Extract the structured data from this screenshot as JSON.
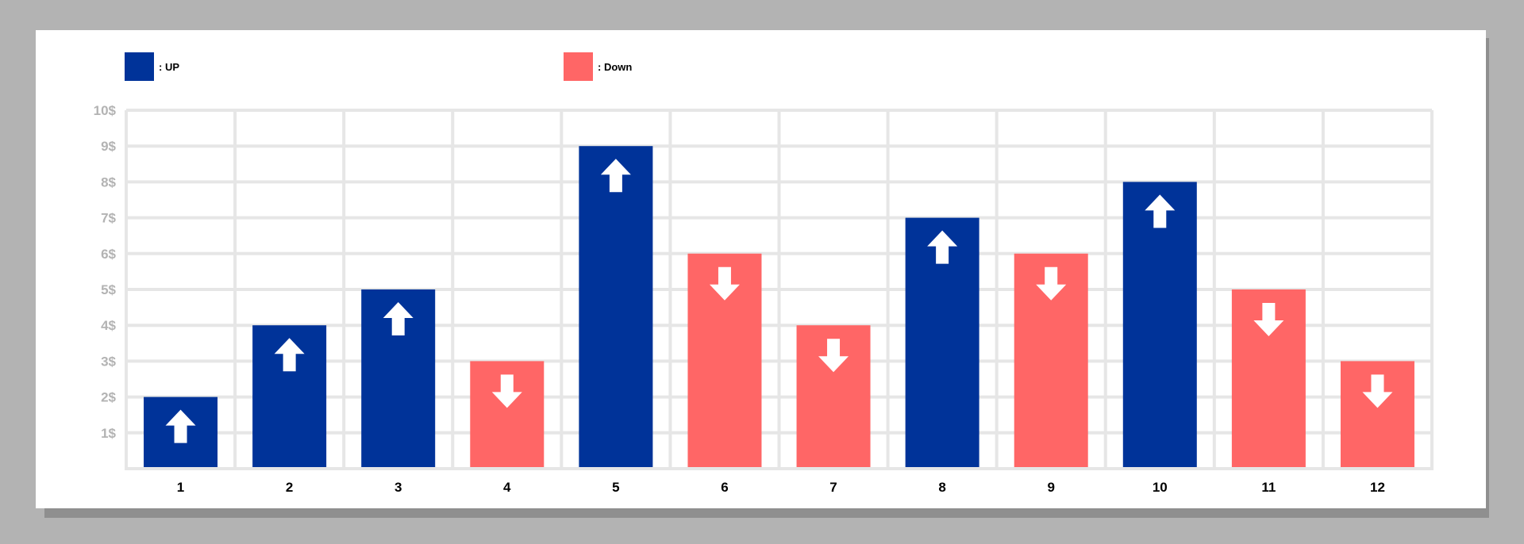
{
  "legend": {
    "up_label": ": UP",
    "down_label": ": Down"
  },
  "colors": {
    "up": "#003399",
    "down": "#ff6666",
    "grid": "#e6e6e6",
    "y_tick": "#b3b3b3",
    "x_tick": "#000000"
  },
  "chart_data": {
    "type": "bar",
    "title": "",
    "xlabel": "",
    "ylabel": "",
    "categories": [
      "1",
      "2",
      "3",
      "4",
      "5",
      "6",
      "7",
      "8",
      "9",
      "10",
      "11",
      "12"
    ],
    "values": [
      2,
      4,
      5,
      3,
      9,
      6,
      4,
      7,
      6,
      8,
      5,
      3
    ],
    "directions": [
      "up",
      "up",
      "up",
      "down",
      "up",
      "down",
      "down",
      "up",
      "down",
      "up",
      "down",
      "down"
    ],
    "y_tick_labels": [
      "1$",
      "2$",
      "3$",
      "4$",
      "5$",
      "6$",
      "7$",
      "8$",
      "9$",
      "10$"
    ],
    "ylim": [
      0,
      10
    ],
    "grid": true,
    "legend_position": "top-left"
  }
}
